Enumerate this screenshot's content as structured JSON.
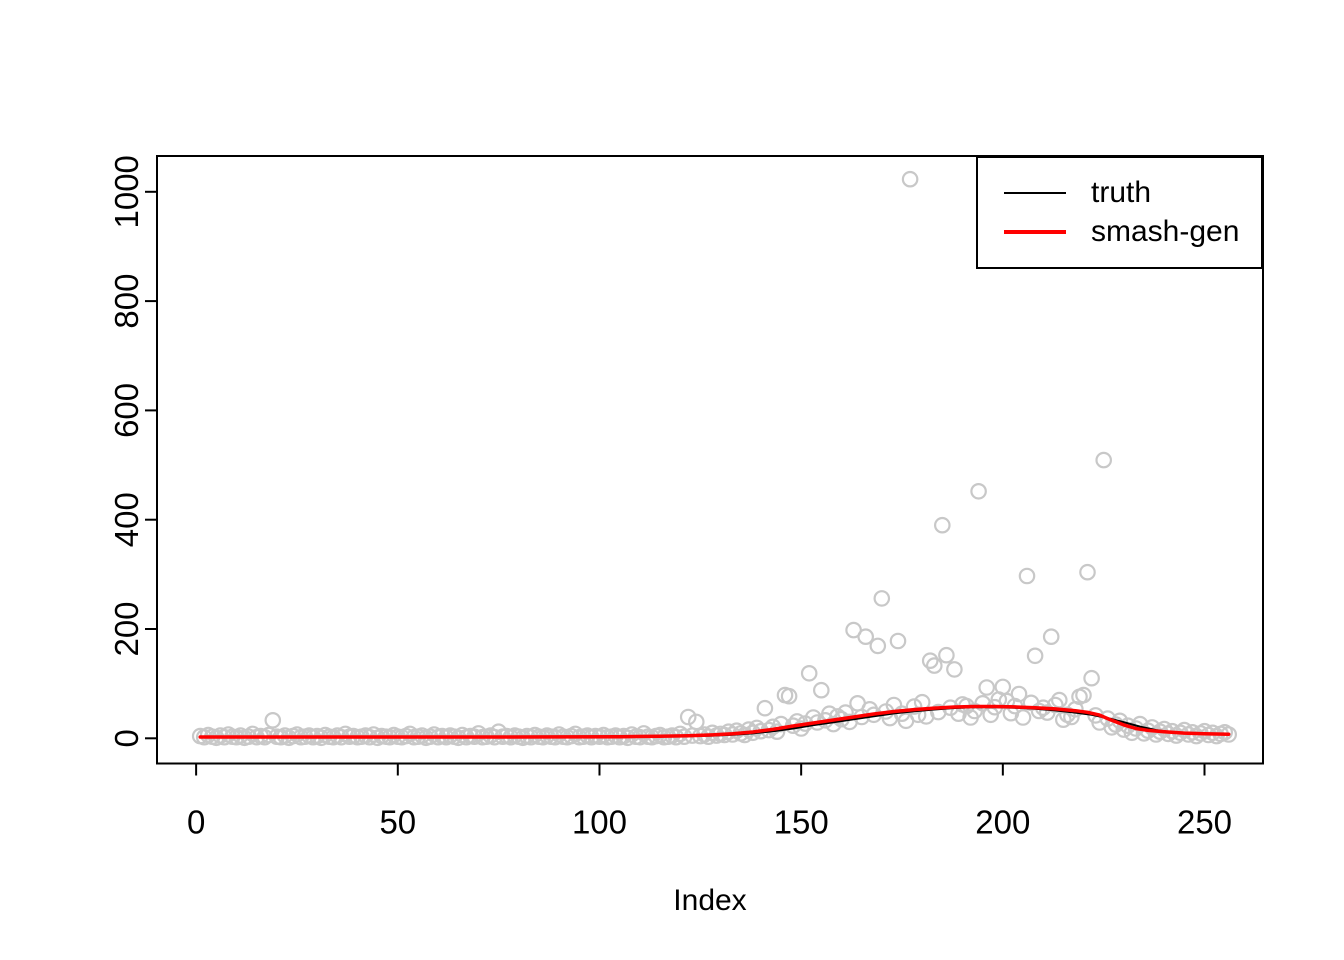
{
  "chart_data": {
    "type": "scatter",
    "title": "",
    "xlabel": "Index",
    "ylabel": "",
    "xlim": [
      -9.7,
      264.5
    ],
    "ylim": [
      -46.1,
      1065.5
    ],
    "x_ticks": [
      0,
      50,
      100,
      150,
      200,
      250
    ],
    "y_ticks": [
      0,
      200,
      400,
      600,
      800,
      1000
    ],
    "grid": false,
    "background_color": "#ffffff",
    "axis_color": "#000000",
    "scatter": {
      "name": "observed-counts",
      "marker": "open-circle",
      "color": "#c8c8c8",
      "x_rule": "index 1..256",
      "y": [
        4,
        2,
        6,
        3,
        1,
        5,
        2,
        7,
        3,
        2,
        5,
        1,
        3,
        8,
        2,
        4,
        2,
        6,
        33,
        3,
        2,
        5,
        1,
        4,
        7,
        2,
        3,
        5,
        2,
        4,
        1,
        6,
        3,
        2,
        5,
        2,
        8,
        3,
        4,
        2,
        3,
        5,
        2,
        7,
        1,
        4,
        3,
        2,
        6,
        3,
        2,
        4,
        8,
        2,
        3,
        5,
        1,
        3,
        7,
        2,
        4,
        2,
        5,
        3,
        1,
        6,
        2,
        4,
        3,
        9,
        2,
        3,
        5,
        2,
        12,
        3,
        4,
        2,
        5,
        3,
        1,
        4,
        2,
        6,
        3,
        2,
        5,
        3,
        2,
        7,
        3,
        2,
        4,
        8,
        2,
        3,
        5,
        2,
        4,
        3,
        6,
        2,
        3,
        5,
        2,
        4,
        1,
        7,
        3,
        2,
        9,
        3,
        2,
        4,
        6,
        2,
        3,
        5,
        2,
        8,
        3,
        39,
        5,
        30,
        4,
        7,
        3,
        10,
        5,
        8,
        6,
        12,
        7,
        14,
        9,
        6,
        16,
        10,
        19,
        13,
        55,
        15,
        21,
        12,
        26,
        79,
        77,
        23,
        31,
        18,
        27,
        119,
        38,
        29,
        88,
        33,
        45,
        26,
        40,
        35,
        47,
        30,
        198,
        64,
        39,
        186,
        53,
        43,
        169,
        256,
        49,
        37,
        61,
        178,
        45,
        32,
        1023,
        58,
        43,
        66,
        40,
        142,
        133,
        48,
        390,
        152,
        56,
        126,
        45,
        62,
        59,
        38,
        50,
        452,
        64,
        93,
        43,
        57,
        71,
        94,
        68,
        46,
        59,
        81,
        38,
        297,
        65,
        151,
        50,
        56,
        47,
        186,
        61,
        70,
        34,
        43,
        39,
        53,
        76,
        79,
        304,
        110,
        42,
        29,
        509,
        36,
        20,
        25,
        32,
        16,
        23,
        10,
        18,
        26,
        9,
        14,
        20,
        7,
        12,
        17,
        8,
        13,
        5,
        10,
        15,
        7,
        11,
        4,
        9,
        13,
        6,
        10,
        4,
        8,
        11,
        7
      ]
    },
    "series": [
      {
        "name": "truth",
        "color": "#000000",
        "width": 2,
        "points": [
          [
            1,
            3
          ],
          [
            30,
            3
          ],
          [
            60,
            3
          ],
          [
            90,
            3
          ],
          [
            105,
            3.1
          ],
          [
            115,
            3.4
          ],
          [
            122,
            4
          ],
          [
            128,
            5
          ],
          [
            133,
            6.5
          ],
          [
            138,
            9
          ],
          [
            143,
            13
          ],
          [
            148,
            18
          ],
          [
            153,
            24
          ],
          [
            158,
            29.5
          ],
          [
            163,
            35
          ],
          [
            168,
            40.5
          ],
          [
            173,
            45.5
          ],
          [
            178,
            49.5
          ],
          [
            183,
            52.8
          ],
          [
            188,
            55.4
          ],
          [
            193,
            56.8
          ],
          [
            198,
            57
          ],
          [
            203,
            56
          ],
          [
            208,
            54
          ],
          [
            213,
            51
          ],
          [
            218,
            47
          ],
          [
            222,
            43
          ],
          [
            226,
            37
          ],
          [
            230,
            29.5
          ],
          [
            234,
            21.5
          ],
          [
            238,
            15
          ],
          [
            242,
            11
          ],
          [
            246,
            9
          ],
          [
            250,
            8
          ],
          [
            256,
            7
          ]
        ]
      },
      {
        "name": "smash-gen",
        "color": "#ff0000",
        "width": 3.5,
        "points": [
          [
            1,
            2.3
          ],
          [
            30,
            2.3
          ],
          [
            60,
            2.4
          ],
          [
            90,
            2.6
          ],
          [
            105,
            3
          ],
          [
            115,
            3.7
          ],
          [
            122,
            4.8
          ],
          [
            128,
            6.2
          ],
          [
            133,
            8.2
          ],
          [
            138,
            11.5
          ],
          [
            143,
            16.5
          ],
          [
            148,
            22.5
          ],
          [
            153,
            28
          ],
          [
            158,
            33.5
          ],
          [
            163,
            39
          ],
          [
            168,
            44.5
          ],
          [
            173,
            49
          ],
          [
            178,
            52.5
          ],
          [
            183,
            55.2
          ],
          [
            188,
            57.2
          ],
          [
            193,
            58.2
          ],
          [
            198,
            58.2
          ],
          [
            203,
            57.4
          ],
          [
            208,
            56
          ],
          [
            213,
            53.8
          ],
          [
            218,
            50.5
          ],
          [
            221,
            47.5
          ],
          [
            224,
            42.5
          ],
          [
            227,
            33
          ],
          [
            230,
            24.5
          ],
          [
            233,
            18
          ],
          [
            236,
            14.5
          ],
          [
            240,
            12
          ],
          [
            245,
            9.6
          ],
          [
            250,
            8.4
          ],
          [
            256,
            7.6
          ]
        ]
      }
    ],
    "legend": {
      "position": "topright",
      "entries": [
        {
          "label": "truth",
          "color": "#000000",
          "line_width": 2
        },
        {
          "label": "smash-gen",
          "color": "#ff0000",
          "line_width": 4
        }
      ]
    }
  }
}
